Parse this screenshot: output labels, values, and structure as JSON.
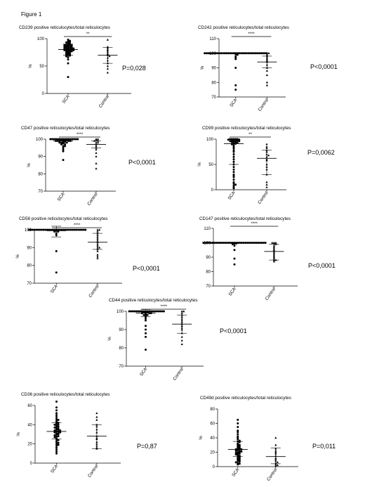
{
  "figure_label": "Figure 1",
  "chart_data": [
    {
      "type": "scatter",
      "title": "CD239 positive reticulocytes/total reticulocytes",
      "ylabel": "%",
      "categories": [
        "SCA",
        "Control"
      ],
      "ylim": [
        0,
        100
      ],
      "yticks": [
        0,
        50,
        100
      ],
      "yticklabels": [
        "0",
        "50",
        "100"
      ],
      "significance": "**",
      "p_value": "P=0,028",
      "series": [
        {
          "mean": 80,
          "sd_low": 70,
          "sd_high": 90,
          "values": [
            98,
            96,
            95,
            94,
            93,
            92,
            91,
            90,
            90,
            89,
            88,
            88,
            87,
            87,
            86,
            85,
            85,
            84,
            84,
            83,
            83,
            82,
            82,
            81,
            81,
            80,
            80,
            79,
            79,
            78,
            78,
            77,
            77,
            76,
            75,
            74,
            73,
            72,
            71,
            70,
            69,
            68,
            66,
            62,
            55,
            30
          ]
        },
        {
          "mean": 70,
          "sd_low": 55,
          "sd_high": 84,
          "values": [
            98,
            85,
            83,
            80,
            78,
            75,
            72,
            70,
            68,
            65,
            60,
            55,
            50,
            45,
            38
          ]
        }
      ]
    },
    {
      "type": "scatter",
      "title": "CD242 positive reticulocytes/total reticulocytes",
      "ylabel": "%",
      "categories": [
        "SCA",
        "Control"
      ],
      "ylim": [
        70,
        110
      ],
      "yticks": [
        70,
        80,
        90,
        100,
        110
      ],
      "yticklabels": [
        "70",
        "80",
        "90",
        "100",
        "110"
      ],
      "significance": "****",
      "p_value": "P<0,0001",
      "series": [
        {
          "mean": 100,
          "sd_low": 100,
          "sd_high": 100,
          "values": [
            100,
            100,
            100,
            100,
            100,
            100,
            100,
            100,
            100,
            100,
            100,
            100,
            100,
            100,
            100,
            100,
            100,
            100,
            100,
            100,
            100,
            100,
            100,
            100,
            100,
            100,
            100,
            100,
            100,
            100,
            100,
            100,
            100,
            100,
            100,
            99.5,
            99,
            98,
            97,
            96,
            90,
            78,
            75
          ]
        },
        {
          "mean": 94,
          "sd_low": 90,
          "sd_high": 98,
          "values": [
            100,
            100,
            100,
            99,
            98,
            97,
            96,
            95,
            94,
            92,
            90,
            88,
            85,
            80,
            78
          ]
        }
      ]
    },
    {
      "type": "scatter",
      "title": "CD47 positive reticulocytes/total reticulocytes",
      "ylabel": "%",
      "categories": [
        "SCA",
        "Control"
      ],
      "ylim": [
        70,
        100
      ],
      "yticks": [
        70,
        80,
        90,
        100
      ],
      "yticklabels": [
        "70",
        "80",
        "90",
        "100"
      ],
      "significance": "****",
      "p_value": "P<0,0001",
      "series": [
        {
          "mean": 99,
          "sd_low": 98,
          "sd_high": 100,
          "values": [
            100,
            100,
            100,
            100,
            100,
            100,
            100,
            100,
            100,
            100,
            100,
            100,
            100,
            100,
            100,
            100,
            99.5,
            99.5,
            99.5,
            99.5,
            99,
            99,
            99,
            99,
            99,
            98.5,
            98.5,
            98,
            98,
            98,
            97.5,
            97,
            97,
            96,
            96,
            95,
            94,
            93,
            88
          ]
        },
        {
          "mean": 97,
          "sd_low": 95,
          "sd_high": 99,
          "values": [
            100,
            100,
            99.5,
            99,
            99,
            98,
            98,
            97,
            96,
            95,
            94,
            92,
            90,
            86,
            83
          ]
        }
      ]
    },
    {
      "type": "scatter",
      "title": "CD99 positive reticulocytes/total reticulocytes",
      "ylabel": "%",
      "categories": [
        "SCA",
        "Control"
      ],
      "ylim": [
        0,
        100
      ],
      "yticks": [
        0,
        50,
        100
      ],
      "yticklabels": [
        "0",
        "50",
        "100"
      ],
      "significance": "**",
      "p_value": "P=0,0062",
      "series": [
        {
          "mean": 91,
          "sd_low": 50,
          "sd_high": 100,
          "values": [
            100,
            100,
            100,
            100,
            100,
            99,
            99,
            98,
            98,
            97,
            97,
            96,
            96,
            95,
            95,
            94,
            93,
            92,
            91,
            90,
            88,
            85,
            82,
            78,
            75,
            70,
            65,
            60,
            55,
            50,
            45,
            40,
            35,
            30,
            28,
            25,
            20,
            15,
            12,
            10,
            8,
            5,
            3
          ]
        },
        {
          "mean": 62,
          "sd_low": 30,
          "sd_high": 78,
          "values": [
            90,
            85,
            82,
            78,
            75,
            70,
            68,
            65,
            60,
            58,
            50,
            45,
            40,
            30,
            15,
            10,
            5
          ]
        }
      ]
    },
    {
      "type": "scatter",
      "title": "CD58 positive reticulocytes/total reticulocytes",
      "ylabel": "%",
      "categories": [
        "SCA",
        "Control"
      ],
      "ylim": [
        70,
        100
      ],
      "yticks": [
        70,
        80,
        90,
        100
      ],
      "yticklabels": [
        "70",
        "80",
        "90",
        "100"
      ],
      "significance": "****",
      "p_value": "P<0,0001",
      "series": [
        {
          "mean": 99.5,
          "sd_low": 96,
          "sd_high": 102,
          "values": [
            100,
            100,
            100,
            100,
            100,
            100,
            100,
            100,
            100,
            100,
            100,
            100,
            100,
            100,
            100,
            100,
            100,
            100,
            100,
            100,
            100,
            100,
            100,
            100,
            100,
            100,
            100,
            100,
            100,
            100,
            100,
            100,
            99.5,
            99,
            99,
            98,
            97,
            88,
            76
          ]
        },
        {
          "mean": 93,
          "sd_low": 89,
          "sd_high": 98,
          "values": [
            100,
            100,
            99,
            98,
            97,
            96,
            95,
            94,
            93,
            92,
            91,
            90,
            90,
            89,
            88,
            86,
            85,
            84
          ]
        }
      ]
    },
    {
      "type": "scatter",
      "title": "CD147 positive reticulocytes/total reticulocytes",
      "ylabel": "",
      "categories": [
        "SCA",
        "Control"
      ],
      "ylim": [
        70,
        110
      ],
      "yticks": [
        70,
        80,
        90,
        100,
        110
      ],
      "yticklabels": [
        "70",
        "80",
        "90",
        "100",
        "110"
      ],
      "significance": "****",
      "p_value": "P<0,0001",
      "series": [
        {
          "mean": 100,
          "sd_low": 100,
          "sd_high": 100,
          "values": [
            100,
            100,
            100,
            100,
            100,
            100,
            100,
            100,
            100,
            100,
            100,
            100,
            100,
            100,
            100,
            100,
            100,
            100,
            100,
            100,
            100,
            100,
            100,
            100,
            100,
            100,
            100,
            100,
            100,
            100,
            100,
            100,
            100,
            100,
            100,
            99.5,
            99.5,
            99,
            98,
            95,
            89,
            85
          ]
        },
        {
          "mean": 94,
          "sd_low": 88,
          "sd_high": 99,
          "values": [
            100,
            100,
            100,
            99.5,
            99,
            98,
            97,
            96,
            95,
            94,
            93,
            92,
            91,
            90,
            89,
            88,
            88,
            87
          ]
        }
      ]
    },
    {
      "type": "scatter",
      "title": "CD44 positive reticulocytes/total reticulocytes",
      "ylabel": "%",
      "categories": [
        "SCA",
        "Control"
      ],
      "ylim": [
        70,
        100
      ],
      "yticks": [
        70,
        80,
        90,
        100
      ],
      "yticklabels": [
        "70",
        "80",
        "90",
        "100"
      ],
      "significance": "****",
      "p_value": "P<0,0001",
      "series": [
        {
          "mean": 99,
          "sd_low": 97,
          "sd_high": 101,
          "values": [
            100,
            100,
            100,
            100,
            100,
            100,
            100,
            100,
            100,
            100,
            100,
            100,
            100,
            100,
            100,
            100,
            100,
            100,
            100,
            100,
            99.5,
            99.5,
            99.5,
            99,
            99,
            99,
            98.5,
            98,
            98,
            97.5,
            97,
            96,
            95,
            92,
            90,
            88,
            86,
            79
          ]
        },
        {
          "mean": 93,
          "sd_low": 88,
          "sd_high": 98,
          "values": [
            100,
            100,
            99,
            98,
            97,
            96,
            95,
            94,
            93,
            92,
            91,
            90,
            88,
            86,
            84,
            82
          ]
        }
      ]
    },
    {
      "type": "scatter",
      "title": "CD36 positive reticulocytes/total reticulocytes",
      "ylabel": "%",
      "categories": [
        "SCA",
        "Control"
      ],
      "ylim": [
        0,
        60
      ],
      "yticks": [
        0,
        20,
        40,
        60
      ],
      "yticklabels": [
        "0",
        "20",
        "40",
        "60"
      ],
      "significance": "",
      "p_value": "P=0,87",
      "series": [
        {
          "mean": 33,
          "sd_low": 25,
          "sd_high": 42,
          "values": [
            64,
            58,
            55,
            52,
            50,
            48,
            46,
            45,
            44,
            43,
            42,
            41,
            40,
            40,
            39,
            38,
            38,
            37,
            36,
            36,
            35,
            35,
            34,
            34,
            33,
            33,
            32,
            32,
            31,
            31,
            30,
            30,
            29,
            28,
            28,
            27,
            26,
            25,
            24,
            23,
            22,
            21,
            20,
            19,
            18,
            16,
            14,
            12,
            10
          ]
        },
        {
          "mean": 28,
          "sd_low": 15,
          "sd_high": 40,
          "values": [
            52,
            48,
            45,
            40,
            38,
            35,
            32,
            28,
            26,
            25,
            22,
            20,
            18,
            16,
            15
          ]
        }
      ]
    },
    {
      "type": "scatter",
      "title": "CD49d positive reticulocytes/total reticulocytes",
      "ylabel": "%",
      "categories": [
        "SCA",
        "Control"
      ],
      "ylim": [
        0,
        80
      ],
      "yticks": [
        0,
        20,
        40,
        60,
        80
      ],
      "yticklabels": [
        "0",
        "20",
        "40",
        "60",
        "80"
      ],
      "significance": "",
      "p_value": "P=0,011",
      "series": [
        {
          "mean": 24,
          "sd_low": 14,
          "sd_high": 35,
          "values": [
            65,
            60,
            55,
            50,
            48,
            45,
            42,
            40,
            38,
            36,
            35,
            34,
            32,
            31,
            30,
            29,
            28,
            27,
            26,
            25,
            25,
            24,
            24,
            23,
            22,
            22,
            21,
            20,
            20,
            19,
            18,
            18,
            17,
            16,
            15,
            14,
            13,
            12,
            11,
            10,
            9,
            8,
            7,
            6,
            5,
            4,
            3
          ]
        },
        {
          "mean": 14,
          "sd_low": 4,
          "sd_high": 26,
          "values": [
            40,
            30,
            25,
            22,
            20,
            18,
            15,
            12,
            10,
            8,
            6,
            5,
            3,
            2,
            1
          ]
        }
      ]
    }
  ]
}
